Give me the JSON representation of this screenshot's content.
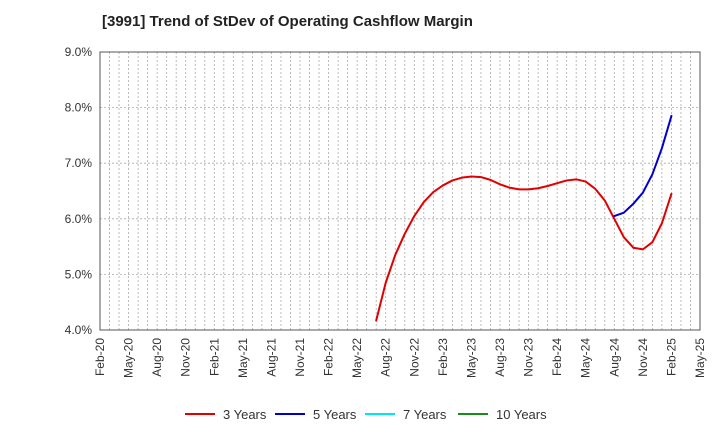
{
  "chart_data": {
    "type": "line",
    "title": "[3991]  Trend of StDev of Operating Cashflow Margin",
    "xlabel": "",
    "ylabel": "",
    "x_ticks": [
      "Feb-20",
      "May-20",
      "Aug-20",
      "Nov-20",
      "Feb-21",
      "May-21",
      "Aug-21",
      "Nov-21",
      "Feb-22",
      "May-22",
      "Aug-22",
      "Nov-22",
      "Feb-23",
      "May-23",
      "Aug-23",
      "Nov-23",
      "Feb-24",
      "May-24",
      "Aug-24",
      "Nov-24",
      "Feb-25",
      "May-25"
    ],
    "y_ticks": [
      "4.0%",
      "5.0%",
      "6.0%",
      "7.0%",
      "8.0%",
      "9.0%"
    ],
    "ylim": [
      4.0,
      9.0
    ],
    "grid": true,
    "legend_position": "bottom",
    "series": [
      {
        "name": "3 Years",
        "color": "#e00000",
        "x": [
          "Jul-22",
          "Aug-22",
          "Sep-22",
          "Oct-22",
          "Nov-22",
          "Dec-22",
          "Jan-23",
          "Feb-23",
          "Mar-23",
          "Apr-23",
          "May-23",
          "Jun-23",
          "Jul-23",
          "Aug-23",
          "Sep-23",
          "Oct-23",
          "Nov-23",
          "Dec-23",
          "Jan-24",
          "Feb-24",
          "Mar-24",
          "Apr-24",
          "May-24",
          "Jun-24",
          "Jul-24",
          "Aug-24",
          "Sep-24",
          "Oct-24",
          "Nov-24",
          "Dec-24",
          "Jan-25",
          "Feb-25"
        ],
        "values": [
          4.17,
          4.85,
          5.35,
          5.73,
          6.05,
          6.3,
          6.48,
          6.6,
          6.69,
          6.74,
          6.76,
          6.75,
          6.7,
          6.62,
          6.56,
          6.53,
          6.53,
          6.55,
          6.59,
          6.64,
          6.69,
          6.71,
          6.67,
          6.54,
          6.33,
          6.0,
          5.67,
          5.48,
          5.45,
          5.58,
          5.92,
          6.45
        ]
      },
      {
        "name": "5 Years",
        "color": "#0000cc",
        "x": [
          "Aug-24",
          "Sep-24",
          "Oct-24",
          "Nov-24",
          "Dec-24",
          "Jan-25",
          "Feb-25"
        ],
        "values": [
          6.05,
          6.11,
          6.27,
          6.47,
          6.8,
          7.27,
          7.85
        ]
      },
      {
        "name": "7 Years",
        "color": "#00e5ee",
        "x": [],
        "values": []
      },
      {
        "name": "10 Years",
        "color": "#1a8a1a",
        "x": [],
        "values": []
      }
    ]
  }
}
